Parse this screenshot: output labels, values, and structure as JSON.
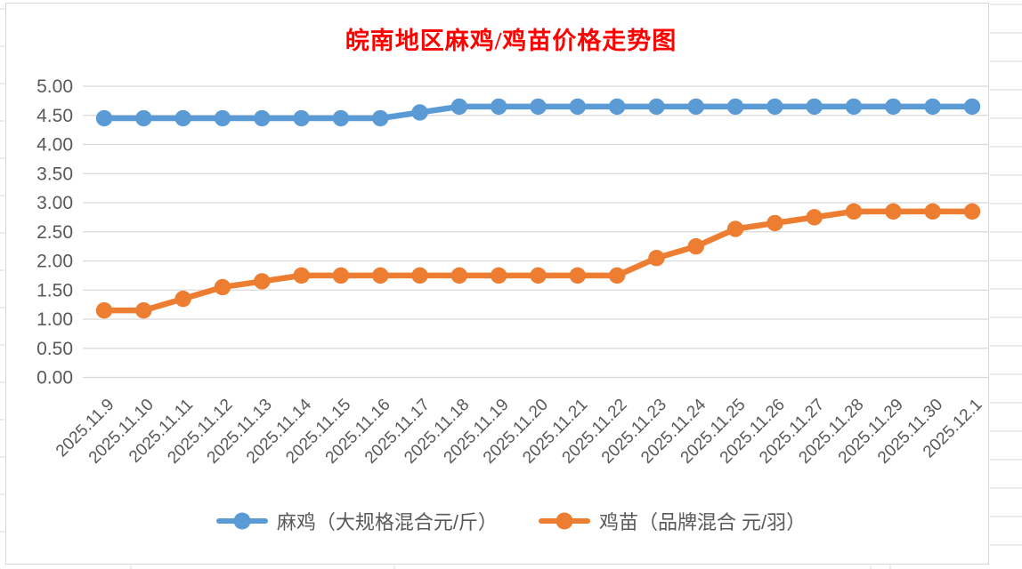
{
  "title": {
    "text": "皖南地区麻鸡/鸡苗价格走势图",
    "color": "#ff0000"
  },
  "chart_data": {
    "type": "line",
    "title": "皖南地区麻鸡/鸡苗价格走势图",
    "categories": [
      "2025.11.9",
      "2025.11.10",
      "2025.11.11",
      "2025.11.12",
      "2025.11.13",
      "2025.11.14",
      "2025.11.15",
      "2025.11.16",
      "2025.11.17",
      "2025.11.18",
      "2025.11.19",
      "2025.11.20",
      "2025.11.21",
      "2025.11.22",
      "2025.11.23",
      "2025.11.24",
      "2025.11.25",
      "2025.11.26",
      "2025.11.27",
      "2025.11.28",
      "2025.11.29",
      "2025.11.30",
      "2025.12.1"
    ],
    "series": [
      {
        "name": "麻鸡（大规格混合元/斤）",
        "color": "#5B9BD5",
        "values": [
          4.45,
          4.45,
          4.45,
          4.45,
          4.45,
          4.45,
          4.45,
          4.45,
          4.55,
          4.65,
          4.65,
          4.65,
          4.65,
          4.65,
          4.65,
          4.65,
          4.65,
          4.65,
          4.65,
          4.65,
          4.65,
          4.65,
          4.65
        ]
      },
      {
        "name": "鸡苗（品牌混合 元/羽）",
        "color": "#ED7D31",
        "values": [
          1.15,
          1.15,
          1.35,
          1.55,
          1.65,
          1.75,
          1.75,
          1.75,
          1.75,
          1.75,
          1.75,
          1.75,
          1.75,
          1.75,
          2.05,
          2.25,
          2.55,
          2.65,
          2.75,
          2.85,
          2.85,
          2.85,
          2.85
        ]
      }
    ],
    "xlabel": "",
    "ylabel": "",
    "ylim": [
      0,
      5
    ],
    "ytick_step": 0.5,
    "ytick_labels": [
      "0.00",
      "0.50",
      "1.00",
      "1.50",
      "2.00",
      "2.50",
      "3.00",
      "3.50",
      "4.00",
      "4.50",
      "5.00"
    ],
    "grid": "horizontal",
    "gridline_color": "#d9d9d9",
    "legend_position": "bottom",
    "x_label_rotation_deg": 45
  }
}
